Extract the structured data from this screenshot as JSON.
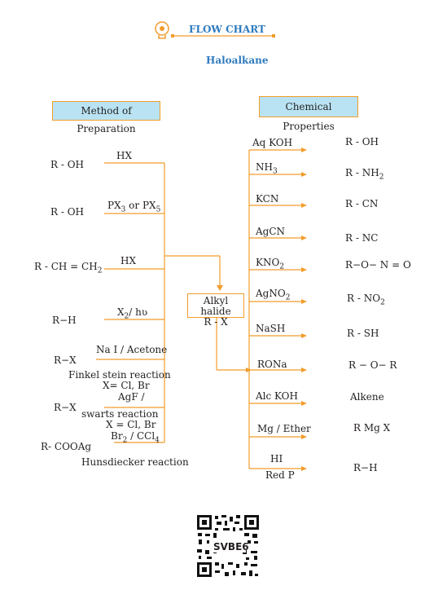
{
  "header": {
    "title": "FLOW CHART",
    "subtitle": "Haloalkane"
  },
  "sections": {
    "left": "Method of Preparation",
    "right": "Chemical Properties"
  },
  "center": {
    "line1": "Alkyl halide",
    "line2": "R - X"
  },
  "preparation": [
    {
      "reactant": "R - OH",
      "reagent": "HX"
    },
    {
      "reactant": "R - OH",
      "reagent_a": "PX",
      "reagent_a_sub": "3",
      "reagent_b": " or PX",
      "reagent_b_sub": "5"
    },
    {
      "reactant_a": "R - CH = CH",
      "reactant_sub": "2",
      "reagent": "HX"
    },
    {
      "reactant": "R−H",
      "reagent_a": "X",
      "reagent_sub": "2",
      "reagent_b": "/  hʋ"
    },
    {
      "reactant": "R−X",
      "reagent": "Na I / Acetone",
      "note1": "Finkel stein reaction",
      "note2": "X= Cl, Br"
    },
    {
      "reactant": "R−X",
      "reagent": "AgF /",
      "note1": "swarts reaction",
      "note2": "X = Cl, Br"
    },
    {
      "reactant": "R- COOAg",
      "reagent_a": "Br",
      "reagent_sub": "2",
      "reagent_b": " / CCl",
      "reagent_sub2": "4",
      "note1": "Hunsdiecker reaction"
    }
  ],
  "properties": [
    {
      "reagent": "Aq KOH",
      "product": "R - OH"
    },
    {
      "reagent_a": "NH",
      "reagent_sub": "3",
      "product_a": "R - NH",
      "product_sub": "2"
    },
    {
      "reagent": "KCN",
      "product": "R - CN"
    },
    {
      "reagent": "AgCN",
      "product": "R - NC"
    },
    {
      "reagent_a": "KNO",
      "reagent_sub": "2",
      "product": "R−O− N = O"
    },
    {
      "reagent_a": "AgNO",
      "reagent_sub": "2",
      "product_a": "R - NO",
      "product_sub": "2"
    },
    {
      "reagent": "NaSH",
      "product": "R - SH"
    },
    {
      "reagent": "RONa",
      "product": "R − O−  R"
    },
    {
      "reagent": "Alc KOH",
      "product": "Alkene"
    },
    {
      "reagent": "Mg / Ether",
      "product": "R Mg X"
    },
    {
      "reagent": "HI",
      "reagent2": "Red P",
      "product": "R−H"
    }
  ],
  "qr": {
    "code": "SVBE6"
  },
  "colors": {
    "line": "#f29c2b",
    "box": "#b9e3f3",
    "header": "#2e7bbf"
  }
}
